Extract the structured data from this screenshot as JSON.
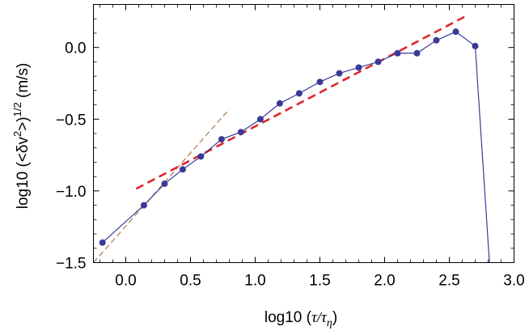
{
  "chart_data": {
    "type": "scatter",
    "xlabel": {
      "prefix": "log10 (",
      "tau": "τ",
      "slash": "/",
      "tau2": "τ",
      "sub": "η",
      "suffix": ")"
    },
    "ylabel": {
      "prefix": "log10 (<δv",
      "sup2": "2",
      "mid": ">)",
      "sup": "1/2",
      "suffix": "  (m/s)"
    },
    "xlim": [
      -0.25,
      3.0
    ],
    "ylim": [
      -1.5,
      0.3
    ],
    "x_ticks": [
      0.0,
      0.5,
      1.0,
      1.5,
      2.0,
      2.5,
      3.0
    ],
    "x_tick_labels": [
      "0.0",
      "0.5",
      "1.0",
      "1.5",
      "2.0",
      "2.5",
      "3.0"
    ],
    "y_ticks": [
      -1.5,
      -1.0,
      -0.5,
      0.0
    ],
    "y_tick_labels": [
      "−1.5",
      "−1.0",
      "−0.5",
      "0.0"
    ],
    "grid": false,
    "series": [
      {
        "style": "line-markers",
        "color": "#3a3a96",
        "x": [
          -0.18,
          0.14,
          0.3,
          0.44,
          0.58,
          0.74,
          0.89,
          1.04,
          1.19,
          1.34,
          1.5,
          1.65,
          1.8,
          1.95,
          2.1,
          2.25,
          2.4,
          2.55,
          2.7
        ],
        "y": [
          -1.36,
          -1.1,
          -0.95,
          -0.85,
          -0.76,
          -0.64,
          -0.59,
          -0.5,
          -0.39,
          -0.32,
          -0.24,
          -0.18,
          -0.14,
          -0.1,
          -0.04,
          -0.04,
          0.05,
          0.11,
          0.01
        ],
        "tail": [
          2.81,
          -1.5
        ]
      },
      {
        "style": "dashed",
        "color": "#e0262a",
        "x": [
          0.08,
          2.62
        ],
        "y": [
          -0.985,
          0.215
        ]
      },
      {
        "style": "dashed-thin",
        "color": "#b8895a",
        "x": [
          -0.25,
          0.8
        ],
        "y": [
          -1.5,
          -0.43
        ]
      }
    ]
  }
}
